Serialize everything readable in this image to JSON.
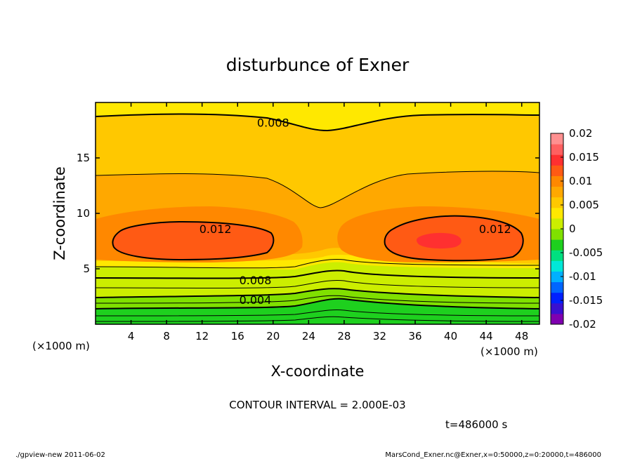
{
  "chart_data": {
    "type": "heatmap",
    "title": "disturbunce of Exner",
    "xlabel": "X-coordinate",
    "ylabel": "Z-coordinate",
    "x_unit_label": "(×1000 m)",
    "x_unit_label_right": "(×1000 m)",
    "xlim": [
      0,
      50
    ],
    "ylim": [
      0,
      20
    ],
    "x_ticks": [
      4,
      8,
      12,
      16,
      20,
      24,
      28,
      32,
      36,
      40,
      44,
      48
    ],
    "y_ticks": [
      5,
      10,
      15
    ],
    "colorbar": {
      "ticks": [
        "0.02",
        "0.015",
        "0.01",
        "0.005",
        "0",
        "-0.005",
        "-0.01",
        "-0.015",
        "-0.02"
      ],
      "range": [
        -0.02,
        0.02
      ],
      "colors": [
        "#7f00b0",
        "#3a10d0",
        "#0020ff",
        "#0066ff",
        "#00b0ff",
        "#00e8d8",
        "#00e080",
        "#1ed01e",
        "#80e000",
        "#ccee00",
        "#ffe800",
        "#ffc800",
        "#ffa800",
        "#ff8800",
        "#ff5a14",
        "#ff3030",
        "#ff6060",
        "#ff9090"
      ]
    },
    "contour_interval": "2.000E-03",
    "contour_labels": [
      {
        "text": "0.008",
        "x": 20,
        "z": 18.2
      },
      {
        "text": "0.012",
        "x": 13.5,
        "z": 8.6
      },
      {
        "text": "0.012",
        "x": 45,
        "z": 8.6
      },
      {
        "text": "0.008",
        "x": 18,
        "z": 4.0
      },
      {
        "text": "0.004",
        "x": 18,
        "z": 2.2
      }
    ],
    "annotation_interval": "CONTOUR INTERVAL = 2.000E-03",
    "time_label": "t=486000 s"
  },
  "footer": {
    "left": "./gpview-new   2011-06-02",
    "right": "MarsCond_Exner.nc@Exner,x=0:50000,z=0:20000,t=486000"
  }
}
